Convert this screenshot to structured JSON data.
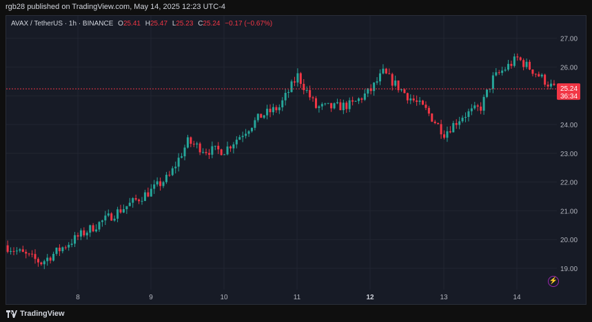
{
  "header": {
    "text": "rgb28 published on TradingView.com, May 14, 2025 12:23 UTC-4"
  },
  "legend": {
    "symbol": "AVAX / TetherUS · 1h · BINANCE",
    "o_label": "O",
    "o_value": "25.41",
    "h_label": "H",
    "h_value": "25.47",
    "l_label": "L",
    "l_value": "25.23",
    "c_label": "C",
    "c_value": "25.24",
    "change": "−0.17 (−0.67%)"
  },
  "price_tag": {
    "price": "25.24",
    "countdown": "36:34"
  },
  "footer": {
    "logo_text": "TradingView"
  },
  "colors": {
    "up": "#26a69a",
    "down": "#f23645",
    "background": "#171b26",
    "grid": "#222631",
    "text": "#b2b5be"
  },
  "chart_data": {
    "type": "candlestick",
    "title": "AVAX / TetherUS · 1h · BINANCE",
    "y_ticks": [
      19.0,
      20.0,
      21.0,
      22.0,
      23.0,
      24.0,
      25.0,
      26.0,
      27.0
    ],
    "y_tick_labels": [
      "19.00",
      "20.00",
      "21.00",
      "22.00",
      "23.00",
      "24.00",
      "25.00",
      "26.00",
      "27.00"
    ],
    "ylim": [
      18.6,
      27.3
    ],
    "x_labels": [
      "8",
      "9",
      "10",
      "11",
      "12",
      "13",
      "14"
    ],
    "bold_x_labels": [
      "12"
    ],
    "last_price": 25.24,
    "grid": true,
    "approx_close_path": [
      [
        "May 7 00:00",
        19.8
      ],
      [
        "May 7 12:00",
        19.2
      ],
      [
        "May 8 00:00",
        20.1
      ],
      [
        "May 8 12:00",
        20.9
      ],
      [
        "May 9 00:00",
        21.7
      ],
      [
        "May 9 06:00",
        22.2
      ],
      [
        "May 9 12:00",
        23.4
      ],
      [
        "May 9 18:00",
        23.1
      ],
      [
        "May 10 00:00",
        23.1
      ],
      [
        "May 10 12:00",
        24.3
      ],
      [
        "May 10 18:00",
        24.6
      ],
      [
        "May 11 00:00",
        25.7
      ],
      [
        "May 11 06:00",
        24.6
      ],
      [
        "May 11 12:00",
        24.6
      ],
      [
        "May 11 18:00",
        24.7
      ],
      [
        "May 12 00:00",
        25.2
      ],
      [
        "May 12 04:00",
        25.8
      ],
      [
        "May 12 12:00",
        25.0
      ],
      [
        "May 12 18:00",
        24.5
      ],
      [
        "May 13 00:00",
        23.7
      ],
      [
        "May 13 06:00",
        24.3
      ],
      [
        "May 13 12:00",
        24.6
      ],
      [
        "May 13 16:00",
        25.6
      ],
      [
        "May 14 00:00",
        26.3
      ],
      [
        "May 14 06:00",
        25.8
      ],
      [
        "May 14 12:00",
        25.24
      ]
    ]
  }
}
